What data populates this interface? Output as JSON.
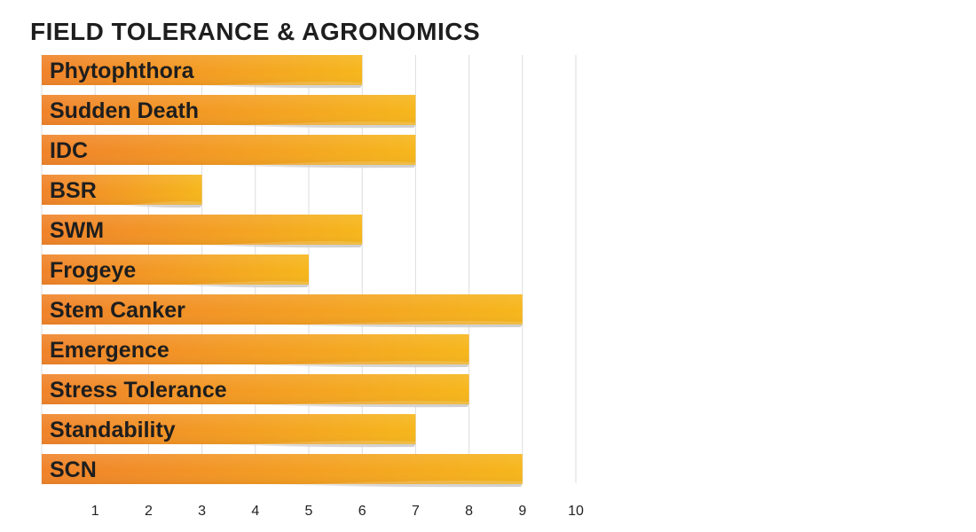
{
  "title": "FIELD TOLERANCE & AGRONOMICS",
  "colors": {
    "bar_start": "#F0832A",
    "bar_end": "#F6B61C",
    "shadow": "#d4d4d4",
    "grid": "#dddddd",
    "label": "#1e1e1e"
  },
  "chart_data": {
    "type": "bar",
    "orientation": "horizontal",
    "title": "FIELD TOLERANCE & AGRONOMICS",
    "xlabel": "",
    "ylabel": "",
    "xlim": [
      0,
      10
    ],
    "x_ticks": [
      "1",
      "2",
      "3",
      "4",
      "5",
      "6",
      "7",
      "8",
      "9",
      "10"
    ],
    "grid": true,
    "legend": "none",
    "categories": [
      "Phytophthora",
      "Sudden Death",
      "IDC",
      "BSR",
      "SWM",
      "Frogeye",
      "Stem Canker",
      "Emergence",
      "Stress Tolerance",
      "Standability",
      "SCN"
    ],
    "values": [
      6,
      7,
      7,
      3,
      6,
      5,
      9,
      8,
      8,
      7,
      9
    ]
  }
}
